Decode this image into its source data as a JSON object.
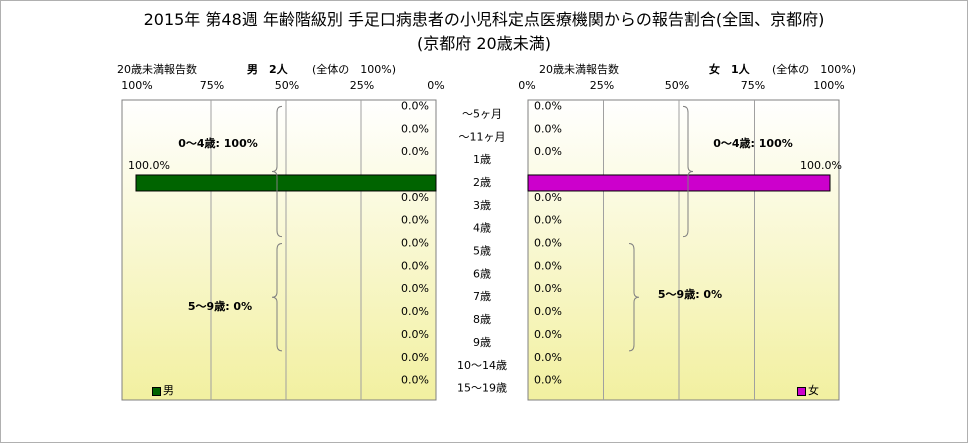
{
  "title_line1": "2015年 第48週 年齢階級別 手足口病患者の小児科定点医療機関からの報告割合(全国、京都府)",
  "title_line2": "(京都府 20歳未満)",
  "chart_data": {
    "type": "bar",
    "orientation": "horizontal",
    "categories": [
      "～5ヶ月",
      "～11ヶ月",
      "1歳",
      "2歳",
      "3歳",
      "4歳",
      "5歳",
      "6歳",
      "7歳",
      "8歳",
      "9歳",
      "10～14歳",
      "15～19歳"
    ],
    "xlim": [
      0,
      100
    ],
    "xticks": [
      "100%",
      "75%",
      "50%",
      "25%",
      "0%"
    ],
    "xticks_right": [
      "0%",
      "25%",
      "50%",
      "75%",
      "100%"
    ],
    "series": [
      {
        "name": "男",
        "side": "left",
        "color": "#006400",
        "header_label": "20歳未満報告数",
        "header_count": "男　2人",
        "header_note": "(全体の　100%)",
        "values": [
          0,
          0,
          0,
          100,
          0,
          0,
          0,
          0,
          0,
          0,
          0,
          0,
          0
        ],
        "value_labels": [
          "0.0%",
          "0.0%",
          "0.0%",
          "100.0%",
          "0.0%",
          "0.0%",
          "0.0%",
          "0.0%",
          "0.0%",
          "0.0%",
          "0.0%",
          "0.0%",
          "0.0%"
        ],
        "group_labels": [
          "0～4歳: 100%",
          "5～9歳: 0%"
        ]
      },
      {
        "name": "女",
        "side": "right",
        "color": "#cc00cc",
        "header_label": "20歳未満報告数",
        "header_count": "女　1人",
        "header_note": "(全体の　100%)",
        "values": [
          0,
          0,
          0,
          100,
          0,
          0,
          0,
          0,
          0,
          0,
          0,
          0,
          0
        ],
        "value_labels": [
          "0.0%",
          "0.0%",
          "0.0%",
          "100.0%",
          "0.0%",
          "0.0%",
          "0.0%",
          "0.0%",
          "0.0%",
          "0.0%",
          "0.0%",
          "0.0%",
          "0.0%"
        ],
        "group_labels": [
          "0～4歳: 100%",
          "5～9歳: 0%"
        ]
      }
    ],
    "grid": "vertical"
  },
  "colors": {
    "plot_bg_top": "#ffffff",
    "plot_bg_bottom": "#f2f0a0",
    "grid": "#a0a0a0"
  }
}
